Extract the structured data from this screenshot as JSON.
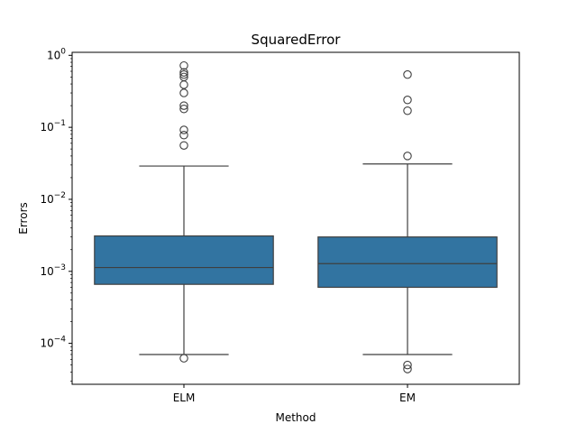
{
  "chart_data": {
    "type": "box",
    "title": "SquaredError",
    "xlabel": "Method",
    "ylabel": "Errors",
    "yscale": "log",
    "ylim": [
      2.7e-05,
      1.1
    ],
    "yticks": [
      {
        "value": 0.0001,
        "base": "10",
        "exp": "−4"
      },
      {
        "value": 0.001,
        "base": "10",
        "exp": "−3"
      },
      {
        "value": 0.01,
        "base": "10",
        "exp": "−2"
      },
      {
        "value": 0.1,
        "base": "10",
        "exp": "−1"
      },
      {
        "value": 1,
        "base": "10",
        "exp": "0"
      }
    ],
    "grid": false,
    "box_color": "#3274a1",
    "categories": [
      "ELM",
      "EM"
    ],
    "boxes": [
      {
        "category": "ELM",
        "whisker_low": 7e-05,
        "q1": 0.00066,
        "median": 0.00113,
        "q3": 0.0031,
        "whisker_high": 0.029,
        "outliers": [
          6.2e-05,
          0.056,
          0.078,
          0.092,
          0.18,
          0.2,
          0.3,
          0.39,
          0.5,
          0.54,
          0.58,
          0.72
        ]
      },
      {
        "category": "EM",
        "whisker_low": 7e-05,
        "q1": 0.0006,
        "median": 0.00128,
        "q3": 0.003,
        "whisker_high": 0.031,
        "outliers": [
          4.4e-05,
          5e-05,
          0.04,
          0.17,
          0.24,
          0.54
        ]
      }
    ]
  }
}
